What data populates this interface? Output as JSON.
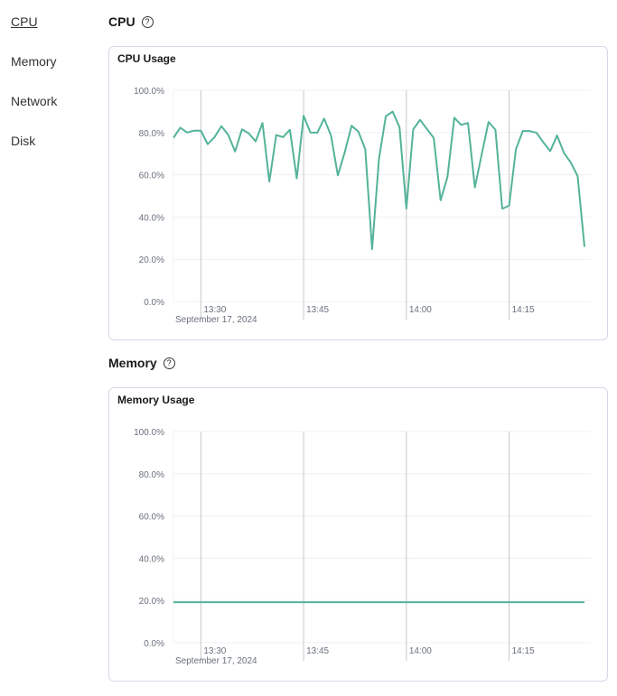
{
  "nav": {
    "items": [
      {
        "label": "CPU",
        "active": true
      },
      {
        "label": "Memory"
      },
      {
        "label": "Network"
      },
      {
        "label": "Disk"
      }
    ]
  },
  "sections": [
    {
      "title": "CPU",
      "help_icon": "question-circle-icon",
      "card_title": "CPU Usage"
    },
    {
      "title": "Memory",
      "help_icon": "question-circle-icon",
      "card_title": "Memory Usage"
    }
  ],
  "colors": {
    "line": "#54b399",
    "grid": "#eef0f5",
    "time_grid": "#c8c8c8"
  },
  "chart_data": [
    {
      "type": "line",
      "title": "CPU Usage",
      "ylim": [
        0,
        100
      ],
      "yticks": [
        "0.0%",
        "20.0%",
        "40.0%",
        "60.0%",
        "80.0%",
        "100.0%"
      ],
      "xticks": [
        "13:30",
        "13:45",
        "14:00",
        "14:15"
      ],
      "date_label": "September 17, 2024",
      "x_start": "13:26",
      "x_end": "14:26",
      "x_step_minutes": 1,
      "values": [
        77.5,
        82.3,
        80,
        80.9,
        80.9,
        74.5,
        77.8,
        83,
        78.9,
        71,
        81.5,
        79.6,
        75.8,
        84.5,
        56.8,
        78.8,
        77.8,
        81.3,
        58.3,
        87.9,
        80,
        79.9,
        86.6,
        78.6,
        59.7,
        70.6,
        83.2,
        80.4,
        72.1,
        24.8,
        67.5,
        87.7,
        89.9,
        82.5,
        44,
        81.5,
        86,
        81.7,
        77.4,
        47.9,
        59,
        87,
        83.6,
        84.5,
        54,
        69.7,
        85,
        81.3,
        43.9,
        45.4,
        72.2,
        80.7,
        80.7,
        79.9,
        75.3,
        71.2,
        78.6,
        70.4,
        65.8,
        59.4,
        25.9
      ]
    },
    {
      "type": "line",
      "title": "Memory Usage",
      "ylim": [
        0,
        100
      ],
      "yticks": [
        "0.0%",
        "20.0%",
        "40.0%",
        "60.0%",
        "80.0%",
        "100.0%"
      ],
      "xticks": [
        "13:30",
        "13:45",
        "14:00",
        "14:15"
      ],
      "date_label": "September 17, 2024",
      "x_start": "13:26",
      "x_end": "14:26",
      "x_step_minutes": 1,
      "values": [
        19.2,
        19.2
      ]
    }
  ]
}
